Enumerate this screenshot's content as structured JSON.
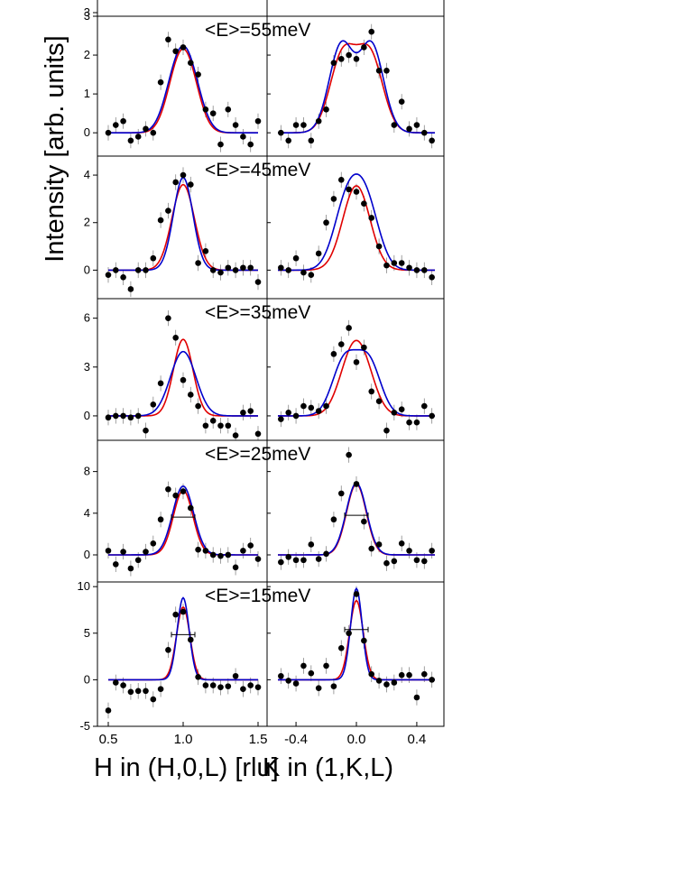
{
  "figure": {
    "ylabel": "Intensity [arb. units]",
    "xlabel_left": "H in (H,0,L) [rlu]",
    "xlabel_right": "K in (1,K,L)",
    "x_ticks_left": [
      "0.5",
      "1.0",
      "1.5"
    ],
    "x_ticks_right": [
      "-0.4",
      "0.0",
      "0.4"
    ]
  },
  "chart_data": [
    {
      "type": "scatter",
      "label": "<E>=55meV",
      "ylim": [
        -0.6,
        3.0
      ],
      "yticks": [
        0,
        1,
        2,
        3
      ],
      "left": {
        "xlim": [
          0.5,
          1.5
        ],
        "x": [
          0.5,
          0.55,
          0.6,
          0.65,
          0.7,
          0.75,
          0.8,
          0.85,
          0.9,
          0.95,
          1.0,
          1.05,
          1.1,
          1.15,
          1.2,
          1.25,
          1.3,
          1.35,
          1.4,
          1.45,
          1.5
        ],
        "y": [
          0.0,
          0.2,
          0.3,
          -0.2,
          -0.1,
          0.1,
          0.0,
          1.3,
          2.4,
          2.1,
          2.2,
          1.8,
          1.5,
          0.6,
          0.5,
          -0.3,
          0.6,
          0.2,
          -0.1,
          -0.3,
          0.3
        ]
      },
      "right": {
        "xlim": [
          -0.52,
          0.52
        ],
        "x": [
          -0.5,
          -0.45,
          -0.4,
          -0.35,
          -0.3,
          -0.25,
          -0.2,
          -0.15,
          -0.1,
          -0.05,
          0.0,
          0.05,
          0.1,
          0.15,
          0.2,
          0.25,
          0.3,
          0.35,
          0.4,
          0.45,
          0.5
        ],
        "y": [
          0.0,
          -0.2,
          0.2,
          0.2,
          -0.2,
          0.3,
          0.6,
          1.8,
          1.9,
          2.0,
          1.9,
          2.2,
          2.6,
          1.6,
          1.6,
          0.2,
          0.8,
          0.1,
          0.2,
          0.0,
          -0.2
        ]
      },
      "series": [
        {
          "name": "",
          "color": "#e00000",
          "left": {
            "center": 1.0,
            "amp": 1.95,
            "width": 0.075,
            "split": 0.04
          },
          "right": {
            "center": 0.0,
            "amp": 2.2,
            "width": 0.085,
            "split": 0.09
          }
        },
        {
          "name": "",
          "color": "#0000cc",
          "left": {
            "center": 1.0,
            "amp": 2.0,
            "width": 0.078,
            "split": 0.045
          },
          "right": {
            "center": 0.0,
            "amp": 2.35,
            "width": 0.08,
            "split": 0.1
          }
        }
      ]
    },
    {
      "type": "scatter",
      "label": "<E>=45meV",
      "ylim": [
        -1.2,
        4.8
      ],
      "yticks": [
        0,
        2,
        4
      ],
      "left": {
        "xlim": [
          0.5,
          1.5
        ],
        "x": [
          0.5,
          0.55,
          0.6,
          0.65,
          0.7,
          0.75,
          0.8,
          0.85,
          0.9,
          0.95,
          1.0,
          1.05,
          1.1,
          1.15,
          1.2,
          1.25,
          1.3,
          1.35,
          1.4,
          1.45,
          1.5
        ],
        "y": [
          -0.2,
          0.0,
          -0.3,
          -0.8,
          0.0,
          0.0,
          0.5,
          2.1,
          2.5,
          3.7,
          4.0,
          3.6,
          0.3,
          0.8,
          0.0,
          -0.1,
          0.1,
          0.0,
          0.1,
          0.1,
          -0.5
        ]
      },
      "right": {
        "xlim": [
          -0.52,
          0.52
        ],
        "x": [
          -0.5,
          -0.45,
          -0.4,
          -0.35,
          -0.3,
          -0.25,
          -0.2,
          -0.15,
          -0.1,
          -0.05,
          0.0,
          0.05,
          0.1,
          0.15,
          0.2,
          0.25,
          0.3,
          0.35,
          0.4,
          0.45,
          0.5
        ],
        "y": [
          0.1,
          0.0,
          0.5,
          -0.1,
          -0.2,
          0.7,
          2.0,
          3.0,
          3.8,
          3.4,
          3.3,
          2.8,
          2.2,
          1.0,
          0.2,
          0.3,
          0.3,
          0.1,
          0.0,
          0.0,
          -0.3
        ]
      },
      "series": [
        {
          "name": "",
          "color": "#e00000",
          "left": {
            "center": 1.0,
            "amp": 3.6,
            "width": 0.075,
            "split": 0.0
          },
          "right": {
            "center": 0.0,
            "amp": 3.55,
            "width": 0.09,
            "split": 0.0
          }
        },
        {
          "name": "",
          "color": "#0000cc",
          "left": {
            "center": 1.0,
            "amp": 3.9,
            "width": 0.065,
            "split": 0.0
          },
          "right": {
            "center": 0.0,
            "amp": 3.55,
            "width": 0.085,
            "split": 0.065
          }
        }
      ]
    },
    {
      "type": "scatter",
      "label": "<E>=35meV",
      "ylim": [
        -1.5,
        7.2
      ],
      "yticks": [
        0,
        3,
        6
      ],
      "left": {
        "xlim": [
          0.5,
          1.5
        ],
        "x": [
          0.5,
          0.55,
          0.6,
          0.65,
          0.7,
          0.75,
          0.8,
          0.85,
          0.9,
          0.95,
          1.0,
          1.05,
          1.1,
          1.15,
          1.2,
          1.25,
          1.3,
          1.35,
          1.4,
          1.45,
          1.5
        ],
        "y": [
          -0.1,
          0.0,
          0.0,
          -0.1,
          0.0,
          -0.9,
          0.7,
          2.0,
          6.0,
          4.8,
          2.2,
          1.3,
          0.6,
          -0.6,
          -0.3,
          -0.6,
          -0.6,
          -1.2,
          0.2,
          0.3,
          -1.1
        ]
      },
      "right": {
        "xlim": [
          -0.52,
          0.52
        ],
        "x": [
          -0.5,
          -0.45,
          -0.4,
          -0.35,
          -0.3,
          -0.25,
          -0.2,
          -0.15,
          -0.1,
          -0.05,
          0.0,
          0.05,
          0.1,
          0.15,
          0.2,
          0.25,
          0.3,
          0.35,
          0.4,
          0.45,
          0.5
        ],
        "y": [
          -0.2,
          0.2,
          0.0,
          0.6,
          0.5,
          0.3,
          0.6,
          3.8,
          4.4,
          5.4,
          3.3,
          4.2,
          1.5,
          0.9,
          -0.9,
          0.2,
          0.4,
          -0.4,
          -0.4,
          0.6,
          0.0
        ]
      },
      "series": [
        {
          "name": "",
          "color": "#e00000",
          "left": {
            "center": 1.0,
            "amp": 4.7,
            "width": 0.065,
            "split": 0.0
          },
          "right": {
            "center": 0.0,
            "amp": 4.25,
            "width": 0.085,
            "split": 0.04
          }
        },
        {
          "name": "",
          "color": "#0000cc",
          "left": {
            "center": 1.0,
            "amp": 3.95,
            "width": 0.085,
            "split": 0.0
          },
          "right": {
            "center": 0.0,
            "amp": 3.8,
            "width": 0.08,
            "split": 0.08
          }
        }
      ]
    },
    {
      "type": "scatter",
      "label": "<E>=25meV",
      "ylim": [
        -2.6,
        11.0
      ],
      "yticks": [
        0,
        4,
        8
      ],
      "left": {
        "xlim": [
          0.5,
          1.5
        ],
        "x": [
          0.5,
          0.55,
          0.6,
          0.65,
          0.7,
          0.75,
          0.8,
          0.85,
          0.9,
          0.95,
          1.0,
          1.05,
          1.1,
          1.15,
          1.2,
          1.25,
          1.3,
          1.35,
          1.4,
          1.45,
          1.5
        ],
        "y": [
          0.4,
          -0.9,
          0.3,
          -1.3,
          -0.5,
          0.3,
          1.1,
          3.4,
          6.3,
          5.7,
          6.1,
          4.5,
          0.5,
          0.4,
          0.0,
          -0.1,
          0.0,
          -1.2,
          0.4,
          0.9,
          -0.4
        ]
      },
      "right": {
        "xlim": [
          -0.52,
          0.52
        ],
        "x": [
          -0.5,
          -0.45,
          -0.4,
          -0.35,
          -0.3,
          -0.25,
          -0.2,
          -0.15,
          -0.1,
          -0.05,
          0.0,
          0.05,
          0.1,
          0.15,
          0.2,
          0.25,
          0.3,
          0.35,
          0.4,
          0.45,
          0.5
        ],
        "y": [
          -0.7,
          -0.2,
          -0.5,
          -0.5,
          1.0,
          -0.4,
          0.1,
          3.4,
          5.9,
          9.6,
          6.8,
          3.2,
          0.6,
          1.0,
          -0.8,
          -0.6,
          1.1,
          0.4,
          -0.5,
          -0.6,
          0.4
        ]
      },
      "series": [
        {
          "name": "",
          "color": "#e00000",
          "left": {
            "center": 1.0,
            "amp": 6.2,
            "width": 0.065,
            "split": 0.0
          },
          "right": {
            "center": 0.0,
            "amp": 6.8,
            "width": 0.065,
            "split": 0.0
          }
        },
        {
          "name": "",
          "color": "#0000cc",
          "left": {
            "center": 1.0,
            "amp": 6.6,
            "width": 0.07,
            "split": 0.0
          },
          "right": {
            "center": 0.0,
            "amp": 6.9,
            "width": 0.067,
            "split": 0.0
          }
        }
      ]
    },
    {
      "type": "scatter",
      "label": "<E>=15meV",
      "ylim": [
        -5.0,
        10.5
      ],
      "yticks": [
        -5,
        0,
        5,
        10
      ],
      "left": {
        "xlim": [
          0.5,
          1.5
        ],
        "x": [
          0.5,
          0.55,
          0.6,
          0.65,
          0.7,
          0.75,
          0.8,
          0.85,
          0.9,
          0.95,
          1.0,
          1.05,
          1.1,
          1.15,
          1.2,
          1.25,
          1.3,
          1.35,
          1.4,
          1.45,
          1.5
        ],
        "y": [
          -3.3,
          -0.3,
          -0.6,
          -1.3,
          -1.2,
          -1.2,
          -2.1,
          -1.0,
          3.2,
          7.0,
          7.3,
          4.3,
          0.3,
          -0.6,
          -0.6,
          -0.8,
          -0.7,
          0.4,
          -1.0,
          -0.6,
          -0.8
        ]
      },
      "right": {
        "xlim": [
          -0.52,
          0.52
        ],
        "x": [
          -0.5,
          -0.45,
          -0.4,
          -0.35,
          -0.3,
          -0.25,
          -0.2,
          -0.15,
          -0.1,
          -0.05,
          0.0,
          0.05,
          0.1,
          0.15,
          0.2,
          0.25,
          0.3,
          0.35,
          0.4,
          0.45,
          0.5
        ],
        "y": [
          0.4,
          -0.1,
          -0.4,
          1.5,
          0.7,
          -0.9,
          1.5,
          -0.7,
          3.4,
          5.0,
          9.2,
          4.2,
          0.6,
          -0.1,
          -0.5,
          -0.3,
          0.5,
          0.5,
          -1.9,
          0.6,
          0.0
        ]
      },
      "series": [
        {
          "name": "",
          "color": "#e00000",
          "left": {
            "center": 1.0,
            "amp": 7.8,
            "width": 0.045,
            "split": 0.0
          },
          "right": {
            "center": 0.0,
            "amp": 8.5,
            "width": 0.045,
            "split": 0.0
          }
        },
        {
          "name": "",
          "color": "#0000cc",
          "left": {
            "center": 1.0,
            "amp": 8.8,
            "width": 0.04,
            "split": 0.0
          },
          "right": {
            "center": 0.0,
            "amp": 9.8,
            "width": 0.038,
            "split": 0.0
          }
        }
      ]
    }
  ]
}
